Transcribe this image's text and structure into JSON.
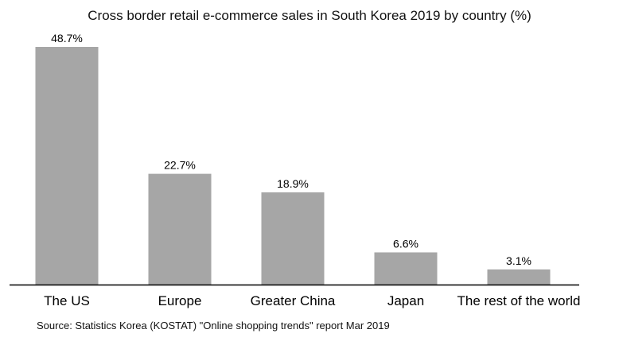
{
  "chart_data": {
    "type": "bar",
    "title": "Cross border retail e-commerce sales in South Korea 2019 by country (%)",
    "categories": [
      "The US",
      "Europe",
      "Greater China",
      "Japan",
      "The rest of the world"
    ],
    "values": [
      48.7,
      22.7,
      18.9,
      6.6,
      3.1
    ],
    "data_labels": [
      "48.7%",
      "22.7%",
      "18.9%",
      "6.6%",
      "3.1%"
    ],
    "xlabel": "",
    "ylabel": "",
    "ylim": [
      0,
      48.7
    ],
    "grid": false,
    "legend": "none",
    "bar_color": "#a6a6a6",
    "source": "Source: Statistics Korea (KOSTAT) \"Online shopping trends\" report Mar 2019"
  }
}
